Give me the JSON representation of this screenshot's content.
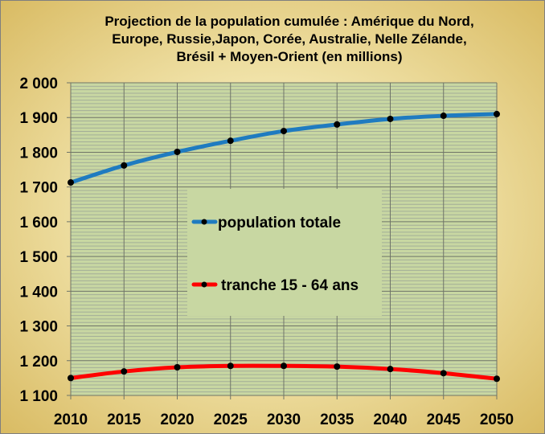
{
  "chart_data": {
    "type": "line",
    "title": "Projection de la population cumulée : Amérique du Nord, Europe, Russie,Japon, Corée, Australie, Nelle Zélande, Brésil + Moyen-Orient (en millions)",
    "title_lines": [
      "Projection de la population cumulée : Amérique du Nord,",
      "Europe, Russie,Japon, Corée, Australie, Nelle Zélande,",
      "Brésil + Moyen-Orient (en millions)"
    ],
    "x": [
      2010,
      2015,
      2020,
      2025,
      2030,
      2035,
      2040,
      2045,
      2050
    ],
    "x_tick_labels": [
      "2010",
      "2015",
      "2020",
      "2025",
      "2030",
      "2035",
      "2040",
      "2045",
      "2050"
    ],
    "ylim": [
      1100,
      2000
    ],
    "y_tick_labels": [
      "1 100",
      "1 200",
      "1 300",
      "1 400",
      "1 500",
      "1 600",
      "1 700",
      "1 800",
      "1 900",
      "2 000"
    ],
    "y_ticks": [
      1100,
      1200,
      1300,
      1400,
      1500,
      1600,
      1700,
      1800,
      1900,
      2000
    ],
    "grid": true,
    "legend_placement": "center",
    "series": [
      {
        "name": "population totale",
        "color": "#1f7bc0",
        "values": [
          1713,
          1762,
          1801,
          1833,
          1861,
          1880,
          1896,
          1905,
          1910
        ]
      },
      {
        "name": "tranche 15 - 64 ans",
        "color": "#ff0000",
        "values": [
          1150,
          1169,
          1181,
          1185,
          1185,
          1183,
          1176,
          1164,
          1148
        ]
      }
    ],
    "plot_background": "#c8d7a2"
  }
}
